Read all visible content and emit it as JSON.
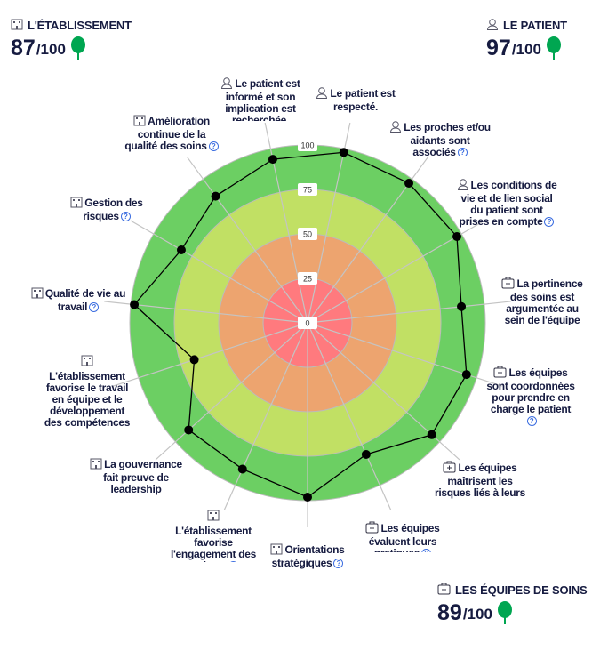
{
  "scores": [
    {
      "title": "L'ÉTABLISSEMENT",
      "value": "87",
      "max": "/100",
      "icon": "building-icon"
    },
    {
      "title": "LE PATIENT",
      "value": "97",
      "max": "/100",
      "icon": "person-icon"
    },
    {
      "title": "LES ÉQUIPES DE SOINS",
      "value": "89",
      "max": "/100",
      "icon": "medical-case-icon"
    }
  ],
  "colors": {
    "ring_0_25": "#ff7a7e",
    "ring_25_50": "#eda46f",
    "ring_50_75": "#c1e064",
    "ring_75_100": "#6ccf63",
    "tree": "#00a651",
    "help": "#3b6de0"
  },
  "chart_data": {
    "type": "radar",
    "title": "",
    "rlim": [
      0,
      100
    ],
    "ticks": [
      "0",
      "25",
      "50",
      "75",
      "100"
    ],
    "axes": [
      {
        "label": "Le patient est respecté.",
        "group": "person",
        "value": 98,
        "help": false
      },
      {
        "label": "Les proches et/ou aidants sont associés",
        "group": "person",
        "value": 97,
        "help": true
      },
      {
        "label": "Les conditions de vie et de lien social du patient sont prises en compte",
        "group": "person",
        "value": 97,
        "help": true
      },
      {
        "label": "La pertinence des soins est argumentée au sein de l'équipe",
        "group": "care",
        "value": 87,
        "help": false
      },
      {
        "label": "Les équipes sont coordonnées pour prendre en charge le patient",
        "group": "care",
        "value": 94,
        "help": true
      },
      {
        "label": "Les équipes maîtrisent les risques liés à leurs pratiques",
        "group": "care",
        "value": 94,
        "help": false
      },
      {
        "label": "Les équipes évaluent leurs pratiques",
        "group": "care",
        "value": 81,
        "help": true
      },
      {
        "label": "Orientations stratégiques",
        "group": "building",
        "value": 98,
        "help": true
      },
      {
        "label": "L'établissement favorise l'engagement des patients",
        "group": "building",
        "value": 90,
        "help": true
      },
      {
        "label": "La gouvernance fait preuve de leadership",
        "group": "building",
        "value": 90,
        "help": false
      },
      {
        "label": "L'établissement favorise le travail en équipe et le développement des compétences",
        "group": "building",
        "value": 67,
        "help": false
      },
      {
        "label": "Qualité de vie au travail",
        "group": "building",
        "value": 98,
        "help": true
      },
      {
        "label": "Gestion des risques",
        "group": "building",
        "value": 82,
        "help": true
      },
      {
        "label": "Amélioration continue de la qualité des soins",
        "group": "building",
        "value": 88,
        "help": true
      },
      {
        "label": "Le patient est informé et son implication est recherchée.",
        "group": "person",
        "value": 94,
        "help": false
      }
    ]
  }
}
